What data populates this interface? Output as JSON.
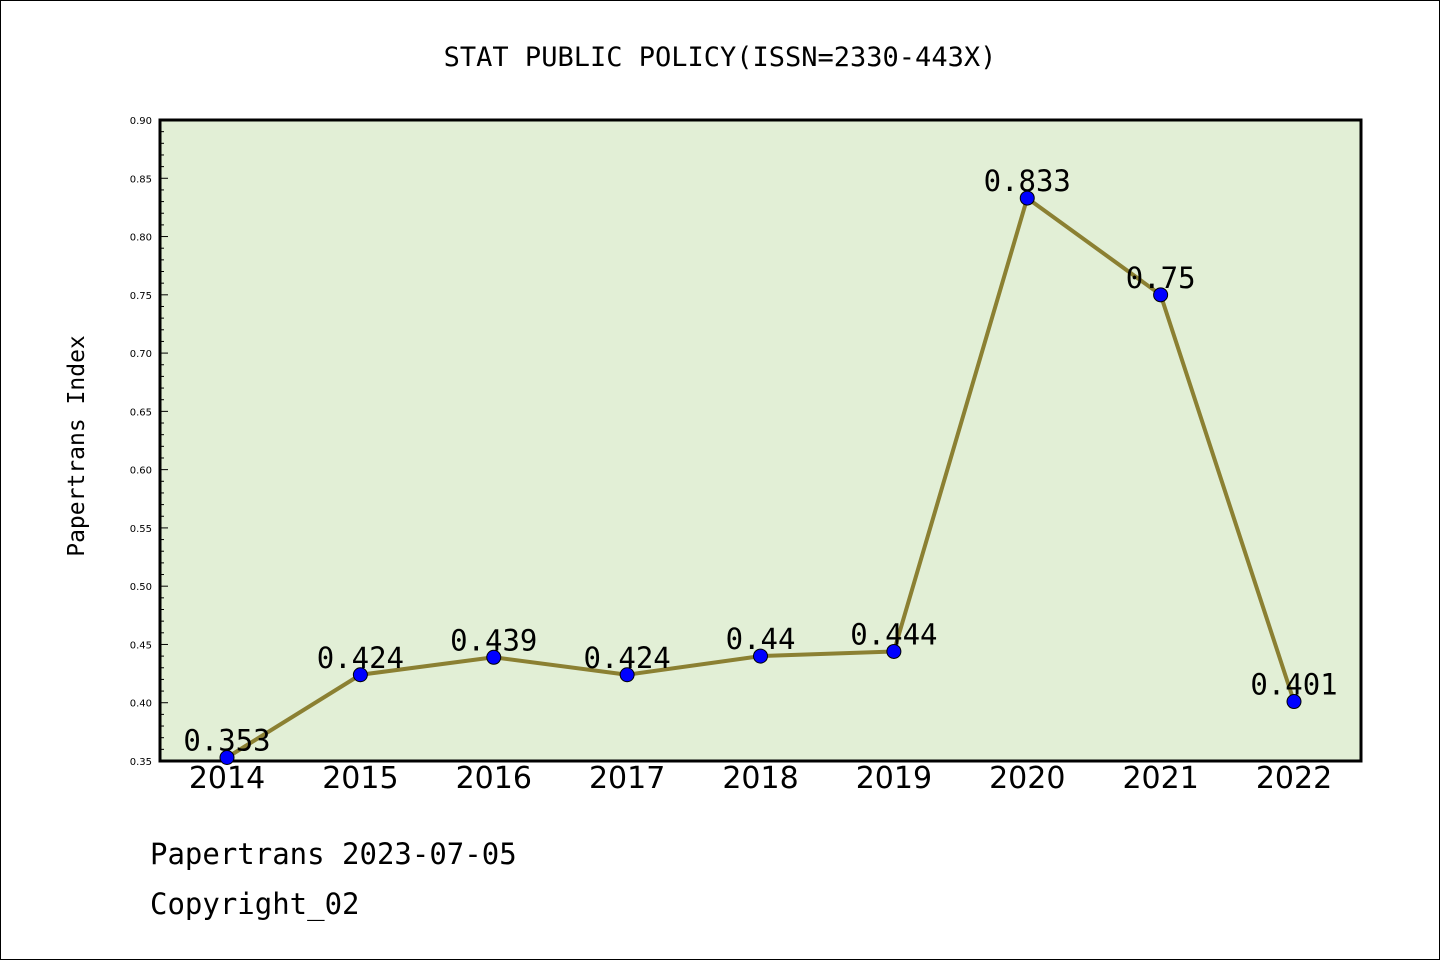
{
  "chart_data": {
    "type": "line",
    "title": "STAT PUBLIC POLICY(ISSN=2330-443X)",
    "xlabel": "",
    "ylabel": "Papertrans Index",
    "categories": [
      "2014",
      "2015",
      "2016",
      "2017",
      "2018",
      "2019",
      "2020",
      "2021",
      "2022"
    ],
    "values": [
      0.353,
      0.424,
      0.439,
      0.424,
      0.44,
      0.444,
      0.833,
      0.75,
      0.401
    ],
    "value_labels": [
      "0.353",
      "0.424",
      "0.439",
      "0.424",
      "0.44",
      "0.444",
      "0.833",
      "0.75",
      "0.401"
    ],
    "ylim": [
      0.35,
      0.9
    ],
    "yticks": [
      "0.35",
      "0.40",
      "0.45",
      "0.50",
      "0.55",
      "0.60",
      "0.65",
      "0.70",
      "0.75",
      "0.80",
      "0.85",
      "0.90"
    ],
    "grid": false,
    "legend": "none",
    "colors": {
      "plot_background": "#e2efd6",
      "line": "#8b8032",
      "marker": "#0000ff"
    }
  },
  "footer": {
    "line1": "Papertrans 2023-07-05",
    "line2": "Copyright_02"
  }
}
